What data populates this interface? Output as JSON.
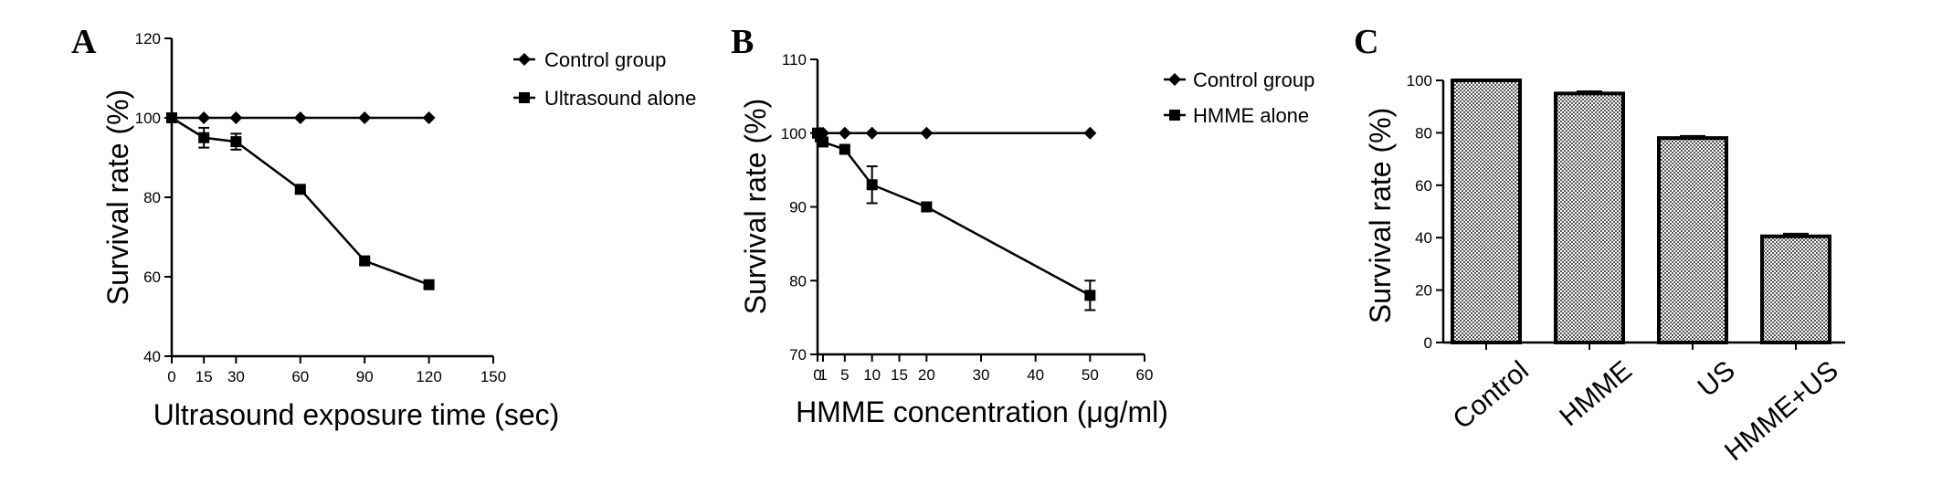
{
  "colors": {
    "ink": "#000000",
    "background": "#ffffff",
    "bar_fill": "#c8c8c8"
  },
  "chart_data": [
    {
      "panel": "A",
      "type": "line",
      "title": "",
      "xlabel": "Ultrasound exposure time (sec)",
      "ylabel": "Survival rate (%)",
      "xlim": [
        0,
        150
      ],
      "ylim": [
        40,
        120
      ],
      "xticks": [
        0,
        15,
        30,
        60,
        90,
        120,
        150
      ],
      "yticks": [
        40,
        60,
        80,
        100,
        120
      ],
      "grid": false,
      "legend_position": "top-right",
      "series": [
        {
          "name": "Control group",
          "marker": "diamond",
          "x": [
            0,
            15,
            30,
            60,
            90,
            120
          ],
          "y": [
            100,
            100,
            100,
            100,
            100,
            100
          ],
          "err": [
            0,
            0,
            0,
            0,
            0,
            0
          ]
        },
        {
          "name": "Ultrasound alone",
          "marker": "square",
          "x": [
            0,
            15,
            30,
            60,
            90,
            120
          ],
          "y": [
            100,
            95,
            94,
            82,
            64,
            58
          ],
          "err": [
            0,
            2.5,
            2,
            0.8,
            0.8,
            0.8
          ]
        }
      ]
    },
    {
      "panel": "B",
      "type": "line",
      "title": "",
      "xlabel": "HMME concentration (μg/ml)",
      "ylabel": "Survival rate (%)",
      "xlim": [
        0,
        60
      ],
      "ylim": [
        70,
        110
      ],
      "xticks": [
        0,
        10,
        15,
        20,
        30,
        40,
        50,
        60
      ],
      "xticks_minor_labeled": [
        1,
        5
      ],
      "yticks": [
        70,
        80,
        90,
        100,
        110
      ],
      "grid": false,
      "legend_position": "top-right",
      "series": [
        {
          "name": "Control group",
          "marker": "diamond",
          "x": [
            0,
            0.5,
            1,
            5,
            10,
            20,
            50
          ],
          "y": [
            100,
            100,
            100,
            100,
            100,
            100,
            100
          ],
          "err": [
            0,
            0,
            0,
            0,
            0,
            0,
            0
          ]
        },
        {
          "name": "HMME alone",
          "marker": "square",
          "x": [
            0,
            0.5,
            1,
            5,
            10,
            20,
            50
          ],
          "y": [
            100,
            99.5,
            98.8,
            97.8,
            93,
            90,
            78
          ],
          "err": [
            0,
            0.5,
            0.5,
            0.4,
            2.5,
            0.6,
            2
          ]
        }
      ]
    },
    {
      "panel": "C",
      "type": "bar",
      "title": "",
      "xlabel": "",
      "ylabel": "Survival rate (%)",
      "ylim": [
        0,
        100
      ],
      "yticks": [
        0,
        20,
        40,
        60,
        80,
        100
      ],
      "grid": false,
      "categories": [
        "Control",
        "HMME",
        "US",
        "HMME+US"
      ],
      "values": [
        100,
        95,
        78,
        40.5
      ],
      "err": [
        0,
        0.8,
        0.8,
        1
      ]
    }
  ]
}
